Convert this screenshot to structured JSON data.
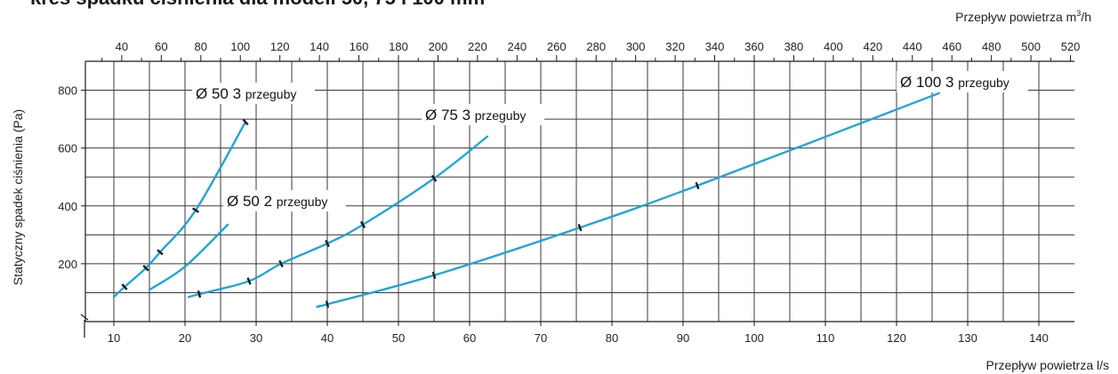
{
  "chart_data": {
    "type": "line",
    "title": "kres spadku ciśnienia dla modeli 50, 75 i 100 mm",
    "xlabel": "Przepływ powietrza l/s",
    "x2label": "Przepływ powietrza m",
    "x2label_sup": "3",
    "x2label_suffix": "/h",
    "ylabel": "Statyczny spadek ciśnienia (Pa)",
    "xlim": [
      6,
      145
    ],
    "ylim": [
      0,
      900
    ],
    "x_ticks": [
      10,
      20,
      30,
      40,
      50,
      60,
      70,
      80,
      90,
      100,
      110,
      120,
      130,
      140
    ],
    "y_ticks": [
      200,
      400,
      600,
      800
    ],
    "x2_ticks": [
      40,
      60,
      80,
      100,
      120,
      140,
      160,
      180,
      200,
      220,
      240,
      260,
      280,
      300,
      320,
      340,
      360,
      380,
      400,
      420,
      440,
      460,
      480,
      500,
      520
    ],
    "grid": true,
    "line_color": "#1aa3dc",
    "series": [
      {
        "name": "Ø 50 3",
        "name_suffix": "przeguby",
        "x": [
          10,
          11.5,
          14.5,
          16.5,
          21.5,
          28.5
        ],
        "y": [
          85,
          120,
          185,
          240,
          385,
          690
        ],
        "marker_x": [
          11.5,
          14.5,
          16.5,
          21.5,
          28.5
        ]
      },
      {
        "name": "Ø 50 2",
        "name_suffix": "przeguby",
        "x": [
          15,
          20,
          26
        ],
        "y": [
          110,
          190,
          335
        ],
        "marker_x": []
      },
      {
        "name": "Ø 75 3",
        "name_suffix": "przeguby",
        "x": [
          20.5,
          22,
          29,
          33.5,
          40,
          45,
          55,
          62.5
        ],
        "y": [
          85,
          95,
          140,
          200,
          270,
          335,
          495,
          640
        ],
        "marker_x": [
          22,
          29,
          33.5,
          40,
          45,
          55
        ]
      },
      {
        "name": "Ø 100 3",
        "name_suffix": "przeguby",
        "x": [
          39,
          40,
          55,
          75.5,
          92,
          126
        ],
        "y": [
          55,
          60,
          160,
          325,
          470,
          790
        ],
        "marker_x": [
          40,
          55,
          75.5,
          92
        ]
      }
    ]
  }
}
